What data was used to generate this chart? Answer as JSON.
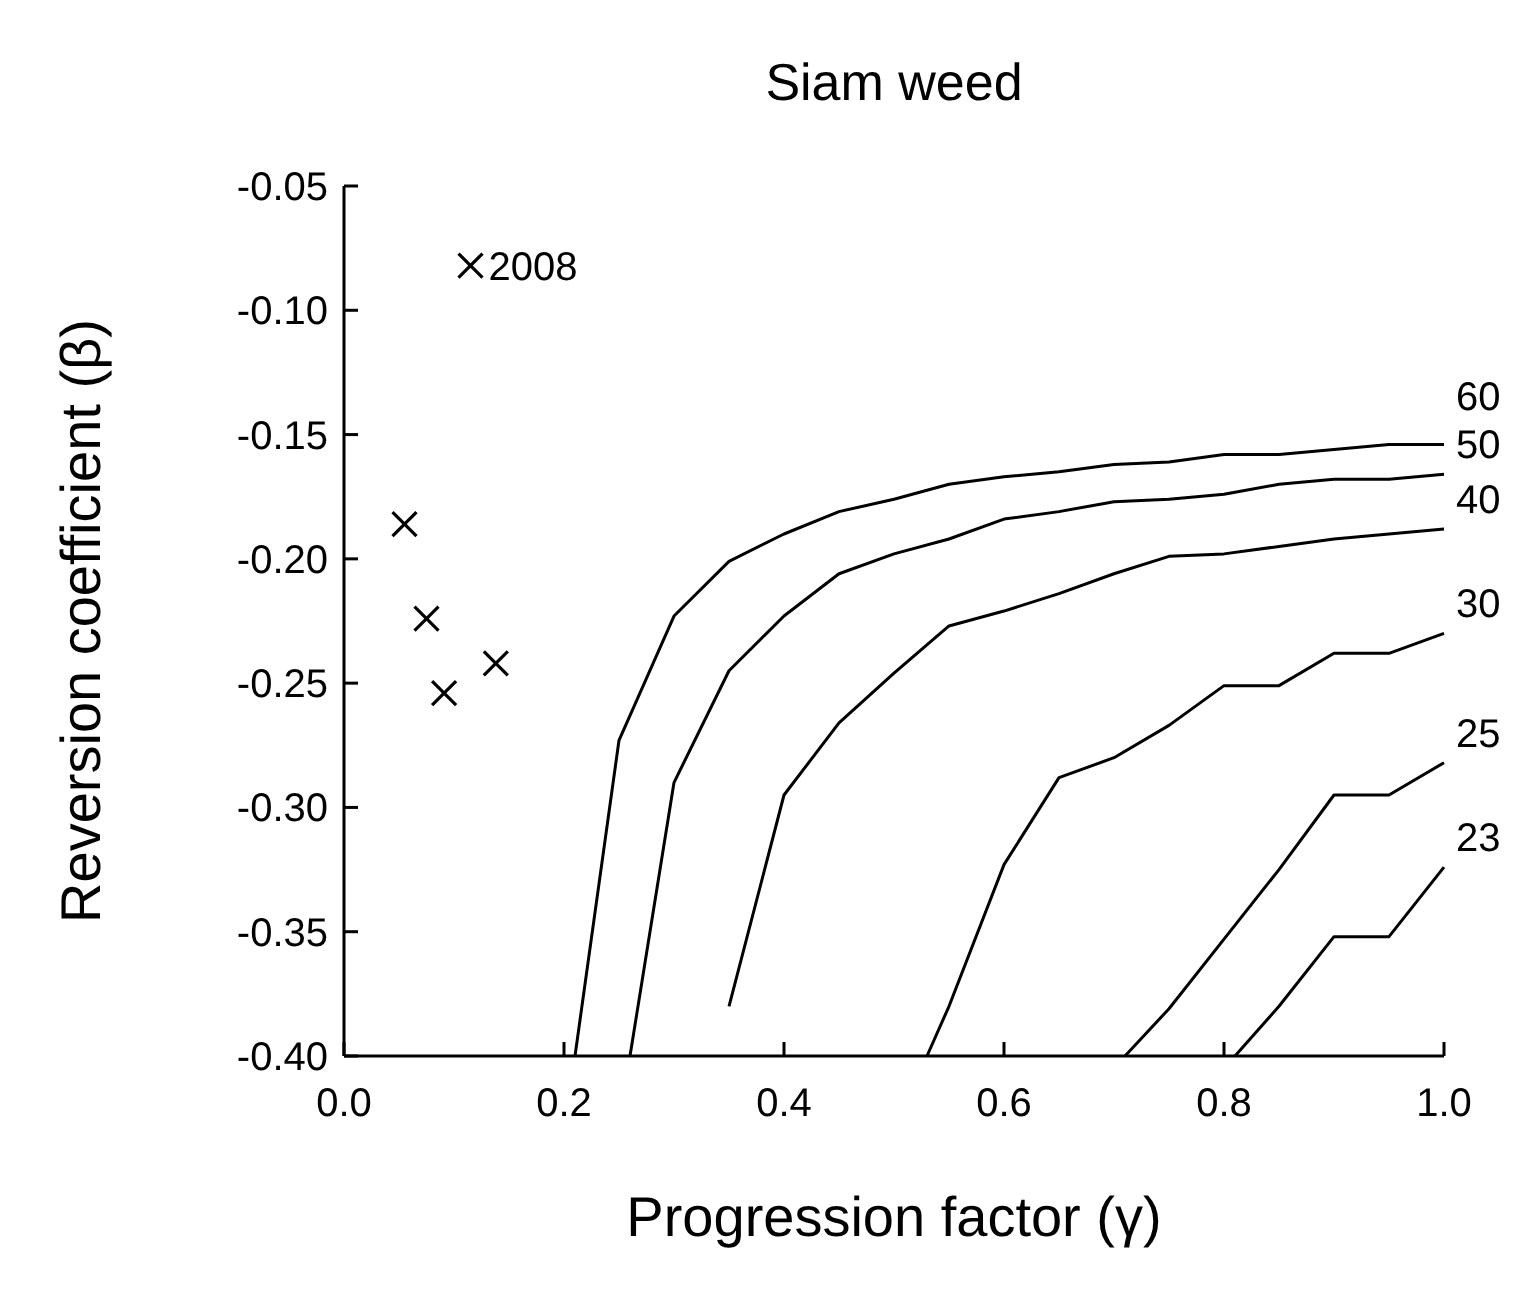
{
  "chart_data": {
    "type": "line",
    "title": "Siam weed",
    "xlabel": "Progression factor (γ)",
    "ylabel": "Reversion coefficient (β)",
    "xlim": [
      0,
      1
    ],
    "ylim": [
      -0.4,
      -0.05
    ],
    "xticks": [
      {
        "value": 0,
        "label": "0.0"
      },
      {
        "value": 0.2,
        "label": "0.2"
      },
      {
        "value": 0.4,
        "label": "0.4"
      },
      {
        "value": 0.6,
        "label": "0.6"
      },
      {
        "value": 0.8,
        "label": "0.8"
      },
      {
        "value": 1,
        "label": "1.0"
      }
    ],
    "yticks": [
      -0.05,
      {
        "value": -0.1,
        "label": "-0.10"
      },
      -0.15,
      {
        "value": -0.2,
        "label": "-0.20"
      },
      -0.25,
      {
        "value": -0.3,
        "label": "-0.30"
      },
      -0.35,
      {
        "value": -0.4,
        "label": "-0.40"
      }
    ],
    "grid": false,
    "legend": false,
    "marker": "none",
    "line_style": "solid",
    "annotations": [
      {
        "text": "2008",
        "x": 0.115,
        "y": -0.082
      }
    ],
    "series": [
      {
        "name": "60",
        "color": "#000000",
        "x": [
          0.21,
          0.25,
          0.3,
          0.35,
          0.4,
          0.45,
          0.5,
          0.55,
          0.6,
          0.65,
          0.7,
          0.75,
          0.8,
          0.85,
          0.9,
          0.95,
          1.0
        ],
        "values": [
          -0.4,
          -0.273,
          -0.223,
          -0.201,
          -0.19,
          -0.181,
          -0.176,
          -0.17,
          -0.167,
          -0.165,
          -0.162,
          -0.161,
          -0.158,
          -0.158,
          -0.156,
          -0.154,
          -0.154
        ]
      },
      {
        "name": "50",
        "color": "#000000",
        "x": [
          0.26,
          0.3,
          0.35,
          0.4,
          0.45,
          0.5,
          0.55,
          0.6,
          0.65,
          0.7,
          0.75,
          0.8,
          0.85,
          0.9,
          0.95,
          1.0
        ],
        "values": [
          -0.4,
          -0.29,
          -0.245,
          -0.223,
          -0.206,
          -0.198,
          -0.192,
          -0.184,
          -0.181,
          -0.177,
          -0.176,
          -0.174,
          -0.17,
          -0.168,
          -0.168,
          -0.166
        ]
      },
      {
        "name": "40",
        "color": "#000000",
        "x": [
          0.35,
          0.4,
          0.45,
          0.5,
          0.55,
          0.6,
          0.65,
          0.7,
          0.75,
          0.8,
          0.85,
          0.9,
          0.95,
          1.0
        ],
        "values": [
          -0.38,
          -0.295,
          -0.266,
          -0.246,
          -0.227,
          -0.221,
          -0.214,
          -0.206,
          -0.199,
          -0.198,
          -0.195,
          -0.192,
          -0.19,
          -0.188
        ]
      },
      {
        "name": "30",
        "color": "#000000",
        "x": [
          0.53,
          0.55,
          0.6,
          0.65,
          0.7,
          0.75,
          0.8,
          0.85,
          0.9,
          0.95,
          1.0
        ],
        "values": [
          -0.4,
          -0.38,
          -0.323,
          -0.288,
          -0.28,
          -0.267,
          -0.251,
          -0.251,
          -0.238,
          -0.238,
          -0.23
        ]
      },
      {
        "name": "25",
        "color": "#000000",
        "x": [
          0.71,
          0.75,
          0.8,
          0.85,
          0.9,
          0.95,
          1.0
        ],
        "values": [
          -0.4,
          -0.381,
          -0.353,
          -0.325,
          -0.295,
          -0.295,
          -0.282
        ]
      },
      {
        "name": "23",
        "color": "#000000",
        "x": [
          0.81,
          0.85,
          0.9,
          0.95,
          1.0
        ],
        "values": [
          -0.4,
          -0.38,
          -0.352,
          -0.352,
          -0.324
        ]
      },
      {
        "type": "scatter",
        "marker": "cross",
        "color": "#000000",
        "x": [
          0.055,
          0.075,
          0.091,
          0.138,
          0.115
        ],
        "values": [
          -0.186,
          -0.224,
          -0.254,
          -0.242,
          -0.082
        ]
      }
    ]
  }
}
